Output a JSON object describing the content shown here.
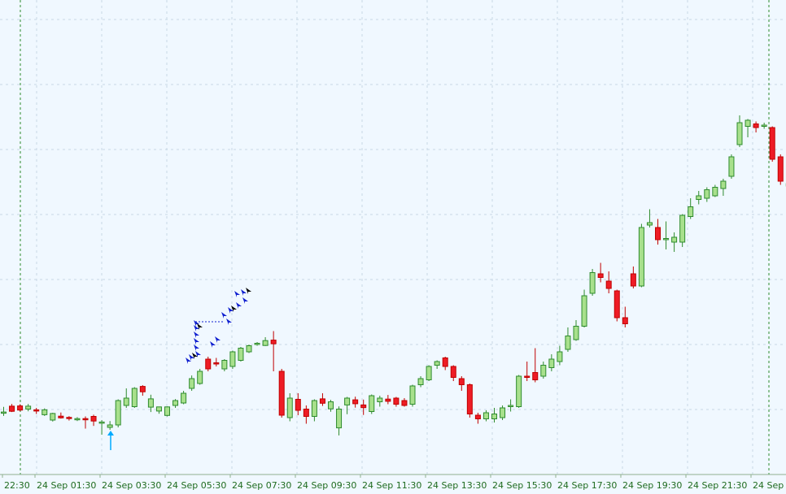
{
  "colors": {
    "background": "#f0f8ff",
    "bull_body": "#a8e08c",
    "bull_border": "#2e8b2e",
    "bear_body": "#ee1c25",
    "bear_border": "#c00000",
    "grid": "#c8d8e4",
    "day_separator": "#2e8b2e",
    "axis_label": "#1e6b1e",
    "marker_buy": "#1020d0",
    "marker_sell": "#000000",
    "tick_marker": "#00aaff"
  },
  "chart_data": {
    "type": "candlestick",
    "title": "",
    "xlabel": "",
    "ylabel": "",
    "grid": true,
    "legend": "none",
    "price_axis_visible": false,
    "ylim": [
      0,
      100
    ],
    "x_tick_labels": [
      "22:30",
      "24 Sep 01:30",
      "24 Sep 03:30",
      "24 Sep 05:30",
      "24 Sep 07:30",
      "24 Sep 09:30",
      "24 Sep 11:30",
      "24 Sep 13:30",
      "24 Sep 15:30",
      "24 Sep 17:30",
      "24 Sep 19:30",
      "24 Sep 21:30",
      "24 Sep 2"
    ],
    "candles": [
      [
        98.9,
        99.3,
        101.4,
        97.7
      ],
      [
        101.7,
        99.6,
        102.6,
        99.3
      ],
      [
        101.8,
        100.1,
        102.5,
        99.6
      ],
      [
        100.5,
        101.7,
        102.6,
        99.6
      ],
      [
        100.2,
        99.8,
        101.0,
        98.5
      ],
      [
        98.2,
        100.2,
        100.8,
        97.7
      ],
      [
        96.0,
        98.7,
        99.0,
        95.4
      ],
      [
        97.6,
        96.9,
        99.1,
        96.6
      ],
      [
        97.1,
        96.7,
        97.6,
        95.8
      ],
      [
        96.2,
        96.6,
        97.2,
        95.6
      ],
      [
        96.6,
        96.3,
        97.5,
        92.5
      ],
      [
        97.5,
        95.6,
        98.2,
        93.6
      ],
      [
        95.2,
        95.2,
        96.0,
        90.0
      ],
      [
        93.0,
        94.0,
        95.6,
        92.0
      ],
      [
        94.0,
        104.0,
        104.5,
        93.0
      ],
      [
        102.0,
        105.0,
        109.0,
        101.0
      ],
      [
        101.5,
        109.0,
        109.5,
        101.0
      ],
      [
        109.8,
        107.6,
        110.3,
        106.0
      ],
      [
        101.3,
        104.7,
        106.4,
        99.3
      ],
      [
        99.7,
        101.4,
        101.5,
        98.6
      ],
      [
        97.9,
        101.4,
        101.6,
        97.5
      ],
      [
        102.0,
        104.0,
        104.6,
        101.0
      ],
      [
        103.0,
        107.0,
        108.0,
        102.5
      ],
      [
        109.0,
        113.0,
        114.3,
        108.0
      ],
      [
        111.0,
        116.0,
        117.0,
        110.5
      ],
      [
        121.0,
        117.0,
        122.0,
        116.0
      ],
      [
        119.5,
        119.0,
        121.5,
        118.0
      ],
      [
        117.0,
        120.5,
        121.0,
        116.0
      ],
      [
        118.0,
        124.0,
        124.5,
        117.0
      ],
      [
        120.5,
        125.5,
        126.0,
        120.0
      ],
      [
        124.0,
        126.5,
        127.0,
        123.5
      ],
      [
        127.5,
        127.5,
        128.0,
        126.5
      ],
      [
        126.6,
        128.6,
        130.0,
        126.4
      ],
      [
        128.8,
        127.3,
        132.5,
        116.0
      ],
      [
        116.0,
        98.0,
        117.0,
        97.0
      ],
      [
        97.0,
        105.0,
        107.0,
        95.5
      ],
      [
        104.5,
        100.0,
        107.0,
        98.0
      ],
      [
        100.5,
        97.5,
        102.0,
        94.5
      ],
      [
        97.5,
        104.0,
        104.5,
        95.5
      ],
      [
        104.7,
        102.9,
        107.0,
        101.8
      ],
      [
        100.6,
        103.5,
        104.3,
        99.4
      ],
      [
        92.8,
        100.5,
        101.6,
        89.7
      ],
      [
        102.2,
        105.0,
        105.5,
        98.4
      ],
      [
        104.3,
        102.7,
        105.6,
        101.1
      ],
      [
        102.2,
        101.1,
        104.4,
        98.1
      ],
      [
        99.5,
        106.0,
        106.5,
        98.5
      ],
      [
        103.5,
        105.0,
        106.0,
        101.5
      ],
      [
        104.6,
        103.7,
        106.3,
        102.5
      ],
      [
        105.0,
        102.5,
        105.5,
        101.5
      ],
      [
        104.0,
        102.0,
        105.0,
        101.5
      ],
      [
        102.5,
        110.0,
        110.5,
        101.5
      ],
      [
        110.5,
        113.0,
        114.0,
        109.5
      ],
      [
        112.5,
        118.0,
        118.5,
        112.0
      ],
      [
        118.5,
        120.0,
        120.5,
        117.0
      ],
      [
        121.5,
        118.0,
        122.0,
        116.5
      ],
      [
        118.0,
        113.5,
        118.5,
        112.0
      ],
      [
        113.0,
        110.5,
        114.0,
        108.0
      ],
      [
        110.5,
        98.5,
        111.0,
        97.0
      ],
      [
        98.0,
        96.5,
        99.0,
        94.5
      ],
      [
        96.5,
        99.0,
        100.0,
        95.5
      ],
      [
        96.5,
        98.5,
        101.0,
        95.0
      ],
      [
        97.0,
        101.0,
        102.0,
        96.0
      ],
      [
        101.5,
        102.0,
        104.5,
        99.5
      ],
      [
        101.5,
        114.0,
        114.5,
        101.0
      ],
      [
        114.0,
        113.5,
        120.0,
        112.0
      ],
      [
        115.5,
        112.5,
        125.5,
        111.5
      ],
      [
        114.0,
        118.5,
        120.0,
        113.0
      ],
      [
        117.5,
        121.0,
        123.0,
        116.0
      ],
      [
        120.0,
        124.0,
        126.5,
        118.5
      ],
      [
        125.0,
        130.5,
        134.0,
        124.0
      ],
      [
        129.0,
        134.5,
        137.0,
        128.5
      ],
      [
        134.5,
        147.0,
        149.5,
        134.0
      ],
      [
        148.0,
        156.5,
        158.0,
        147.0
      ],
      [
        156.0,
        154.5,
        160.5,
        152.5
      ],
      [
        153.0,
        150.0,
        157.0,
        148.0
      ],
      [
        149.0,
        138.0,
        149.5,
        136.5
      ],
      [
        138.0,
        135.5,
        142.5,
        134.0
      ],
      [
        156.0,
        151.0,
        159.0,
        150.0
      ],
      [
        151.0,
        175.0,
        176.5,
        150.5
      ],
      [
        176.0,
        177.0,
        182.5,
        175.0
      ],
      [
        175.0,
        170.0,
        178.5,
        168.0
      ],
      [
        170.0,
        170.5,
        177.5,
        166.0
      ],
      [
        169.0,
        171.0,
        173.0,
        165.0
      ],
      [
        169.0,
        180.0,
        180.5,
        167.0
      ],
      [
        179.5,
        183.5,
        187.0,
        178.5
      ],
      [
        186.5,
        188.0,
        190.0,
        184.5
      ],
      [
        187.0,
        190.5,
        191.5,
        185.5
      ],
      [
        188.0,
        191.5,
        192.5,
        187.5
      ],
      [
        191.0,
        194.0,
        195.0,
        188.0
      ],
      [
        196.0,
        204.0,
        205.0,
        195.0
      ],
      [
        209.0,
        218.0,
        221.0,
        208.0
      ],
      [
        216.5,
        219.0,
        219.5,
        212.0
      ],
      [
        217.5,
        216.0,
        218.5,
        214.0
      ],
      [
        216.5,
        217.0,
        218.0,
        215.5
      ],
      [
        216.0,
        203.0,
        216.5,
        202.0
      ],
      [
        204.0,
        194.0,
        205.0,
        192.5
      ],
      [
        192.0,
        193.0,
        194.5,
        190.0
      ],
      [
        193.0,
        193.0,
        195.0,
        191.0
      ],
      [
        193.0,
        197.0,
        199.0,
        192.0
      ]
    ]
  }
}
